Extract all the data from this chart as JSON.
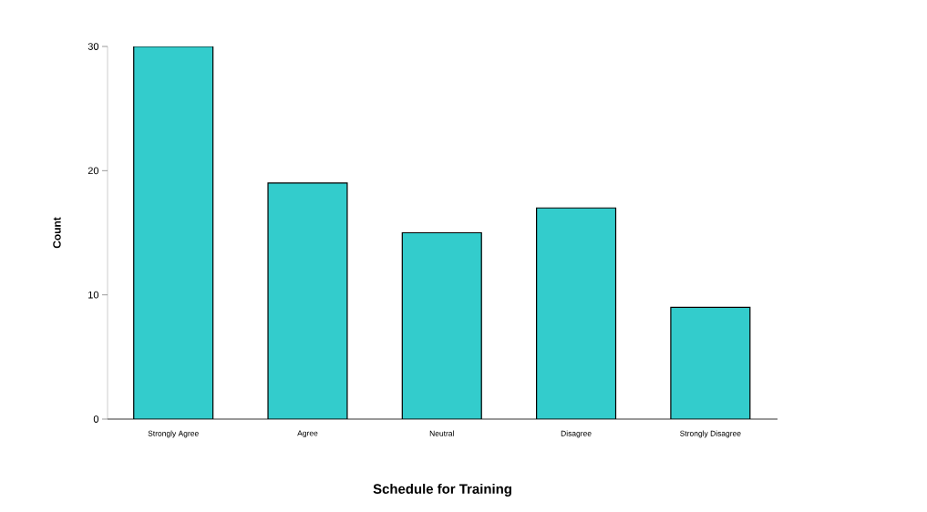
{
  "chart_data": {
    "type": "bar",
    "xlabel": "Schedule for Training",
    "ylabel": "Count",
    "categories": [
      "Strongly Agree",
      "Agree",
      "Neutral",
      "Disagree",
      "Strongly Disagree"
    ],
    "values": [
      30,
      19,
      15,
      17,
      9
    ],
    "color": "#33cccc",
    "ylim": [
      0,
      30
    ],
    "yticks": [
      0,
      10,
      20,
      30
    ],
    "grid": false
  }
}
